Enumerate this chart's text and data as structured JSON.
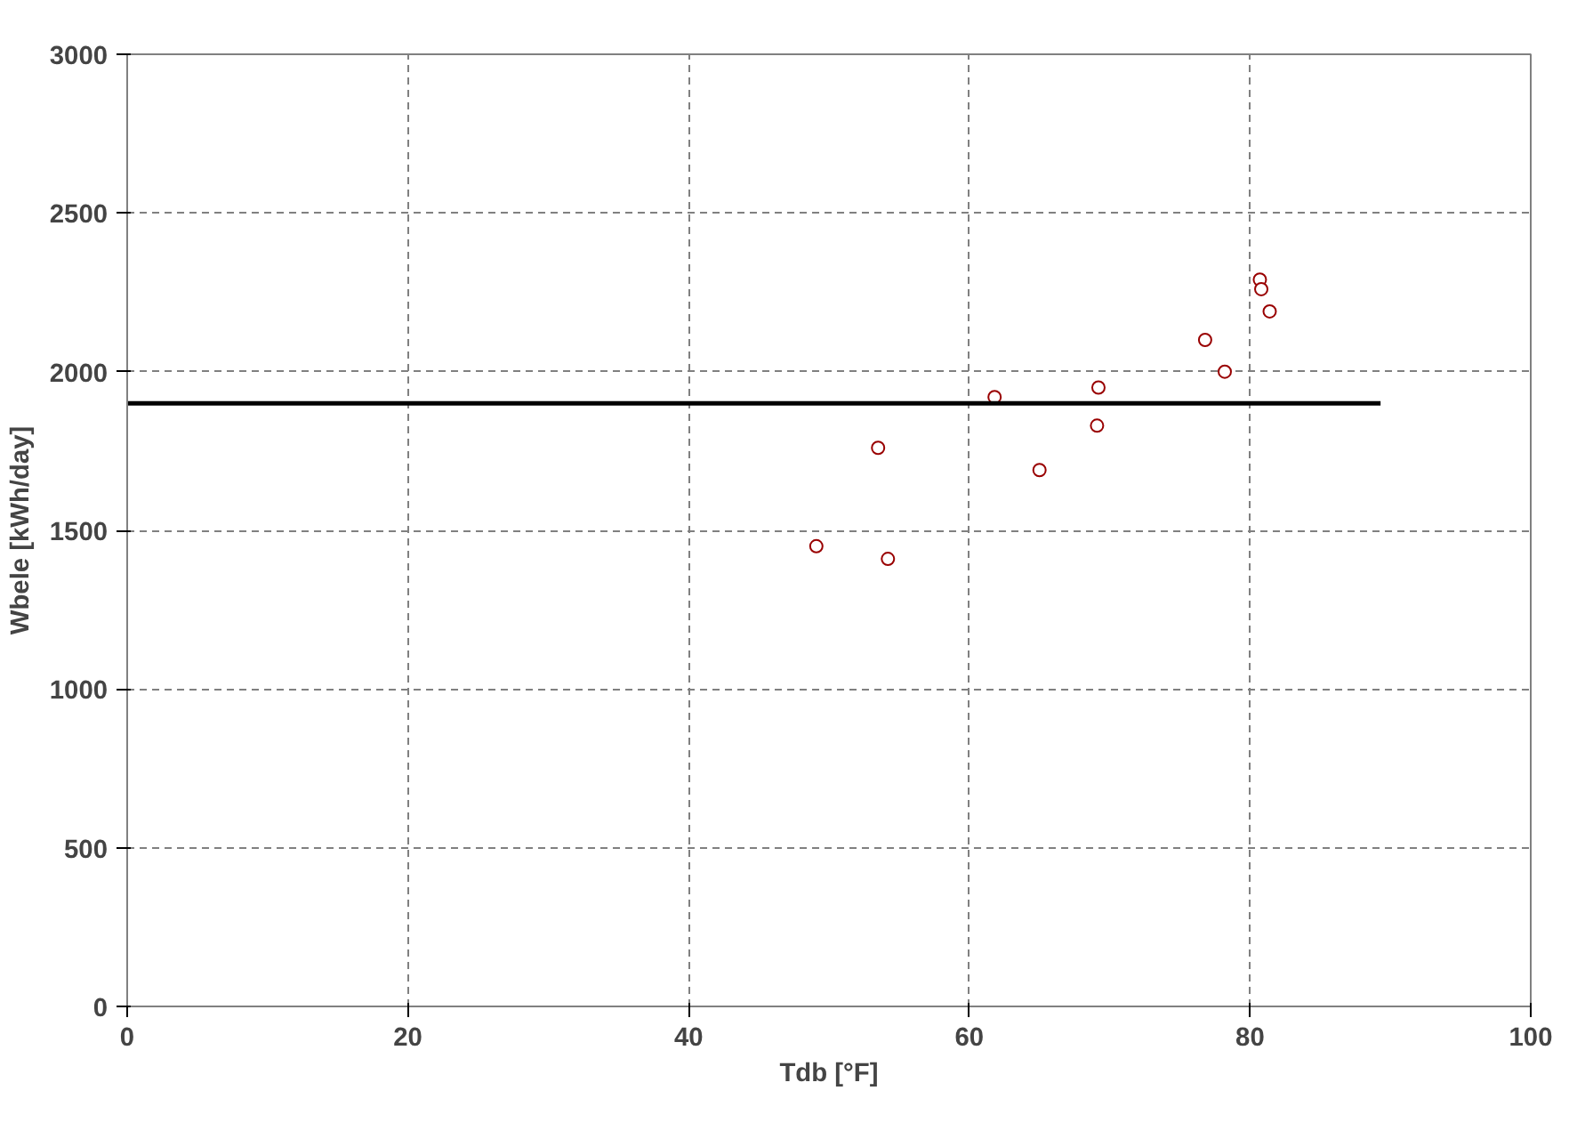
{
  "chart_data": {
    "type": "scatter",
    "xlabel": "Tdb [°F]",
    "ylabel": "Wbele [kWh/day]",
    "xlim": [
      0,
      100
    ],
    "xticks": [
      0,
      20,
      40,
      60,
      80,
      100
    ],
    "ylim": [
      0,
      3000
    ],
    "yticks": [
      0,
      500,
      1000,
      1500,
      2000,
      2500,
      3000
    ],
    "grid": true,
    "series": [
      {
        "marker": "circle",
        "color": "#990000",
        "x": [
          49.1,
          53.5,
          54.2,
          61.8,
          65.0,
          69.2,
          69.1,
          76.8,
          78.2,
          80.7,
          80.8,
          81.4
        ],
        "values": [
          1450,
          1760,
          1410,
          1920,
          1690,
          1950,
          1830,
          2100,
          2000,
          2290,
          2260,
          2190
        ]
      },
      {
        "type": "line",
        "marker": "none",
        "color": "#000000",
        "x": [
          0,
          89.3
        ],
        "values": [
          1900,
          1900
        ]
      }
    ]
  }
}
